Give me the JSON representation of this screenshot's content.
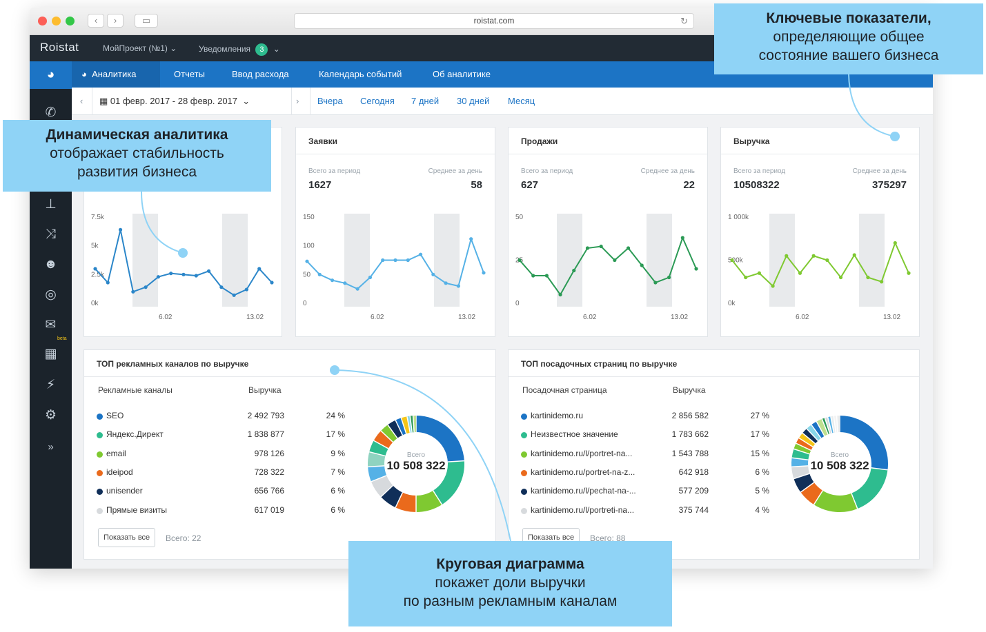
{
  "browser": {
    "url": "roistat.com"
  },
  "topbar": {
    "logo": "Roistat",
    "project": "МойПроект (№1) ⌄",
    "notifications": "Уведомления",
    "notif_count": "3",
    "notif_chevron": "⌄"
  },
  "tabs": [
    {
      "label": "Аналитика"
    },
    {
      "label": "Отчеты"
    },
    {
      "label": "Ввод расхода"
    },
    {
      "label": "Календарь событий"
    },
    {
      "label": "Об аналитике"
    }
  ],
  "filter": {
    "daterange": "01 февр. 2017 - 28 февр. 2017",
    "quick": [
      "Вчера",
      "Сегодня",
      "7 дней",
      "30 дней",
      "Месяц"
    ]
  },
  "metrics": [
    {
      "title": "",
      "total_label": "",
      "avg_label": "",
      "total": "",
      "avg": "",
      "color": "#2b86c9",
      "y_ticks": [
        "7.5k",
        "5k",
        "2.5k",
        "0k"
      ],
      "y_max": 7500,
      "x_ticks": [
        "6.02",
        "13.02"
      ],
      "values": [
        3000,
        1800,
        6400,
        1000,
        1400,
        2300,
        2600,
        2500,
        2400,
        2800,
        1400,
        700,
        1200,
        3000,
        1800
      ]
    },
    {
      "title": "Заявки",
      "total_label": "Всего за период",
      "avg_label": "Среднее за день",
      "total": "1627",
      "avg": "58",
      "color": "#55b1e6",
      "y_ticks": [
        "150",
        "100",
        "50",
        "0"
      ],
      "y_max": 150,
      "x_ticks": [
        "6.02",
        "13.02"
      ],
      "values": [
        73,
        50,
        40,
        35,
        25,
        45,
        75,
        75,
        75,
        85,
        50,
        35,
        30,
        112,
        53
      ]
    },
    {
      "title": "Продажи",
      "total_label": "Всего за период",
      "avg_label": "Среднее за день",
      "total": "627",
      "avg": "22",
      "color": "#2b9a55",
      "y_ticks": [
        "50",
        "25",
        "0"
      ],
      "y_max": 50,
      "x_ticks": [
        "6.02",
        "13.02"
      ],
      "values": [
        25,
        16,
        16,
        5,
        19,
        32,
        33,
        25,
        32,
        22,
        12,
        15,
        38,
        20
      ]
    },
    {
      "title": "Выручка",
      "total_label": "Всего за период",
      "avg_label": "Среднее за день",
      "total": "10508322",
      "avg": "375297",
      "color": "#7fc931",
      "y_ticks": [
        "1 000k",
        "500k",
        "0k"
      ],
      "y_max": 1000000,
      "x_ticks": [
        "6.02",
        "13.02"
      ],
      "values": [
        500000,
        300000,
        350000,
        200000,
        550000,
        350000,
        550000,
        500000,
        300000,
        560000,
        300000,
        250000,
        700000,
        350000
      ]
    }
  ],
  "channels": {
    "title": "ТОП рекламных каналов по выручке",
    "col_name": "Рекламные каналы",
    "col_value": "Выручка",
    "rows": [
      {
        "name": "SEO",
        "value": "2 492 793",
        "pct": "24 %",
        "color": "#1c74c5"
      },
      {
        "name": "Яндекс.Директ",
        "value": "1 838 877",
        "pct": "17 %",
        "color": "#2ebc8f"
      },
      {
        "name": "email",
        "value": "978 126",
        "pct": "9 %",
        "color": "#7fc931"
      },
      {
        "name": "ideipod",
        "value": "728 322",
        "pct": "7 %",
        "color": "#ea6a1c"
      },
      {
        "name": "unisender",
        "value": "656 766",
        "pct": "6 %",
        "color": "#102f59"
      },
      {
        "name": "Прямые визиты",
        "value": "617 019",
        "pct": "6 %",
        "color": "#d7dadd"
      }
    ],
    "show_all": "Показать все",
    "total_note": "Всего: 22",
    "donut_label": "Всего",
    "donut_total": "10 508 322",
    "slices": [
      {
        "share": 24,
        "color": "#1c74c5"
      },
      {
        "share": 17,
        "color": "#2ebc8f"
      },
      {
        "share": 9,
        "color": "#7fc931"
      },
      {
        "share": 7,
        "color": "#ea6a1c"
      },
      {
        "share": 6,
        "color": "#102f59"
      },
      {
        "share": 6,
        "color": "#d7dadd"
      },
      {
        "share": 5,
        "color": "#55b1e6"
      },
      {
        "share": 5,
        "color": "#8fd3c0"
      },
      {
        "share": 4,
        "color": "#2ebc8f"
      },
      {
        "share": 4,
        "color": "#ea6a1c"
      },
      {
        "share": 3,
        "color": "#7fc931"
      },
      {
        "share": 3,
        "color": "#102f59"
      },
      {
        "share": 2,
        "color": "#1c74c5"
      },
      {
        "share": 2,
        "color": "#f5c518"
      },
      {
        "share": 1,
        "color": "#88d6e8"
      },
      {
        "share": 1,
        "color": "#2b9a55"
      },
      {
        "share": 1,
        "color": "#bfe08f"
      }
    ]
  },
  "pages": {
    "title": "ТОП посадочных страниц по выручке",
    "col_name": "Посадочная страница",
    "col_value": "Выручка",
    "rows": [
      {
        "name": "kartinidemo.ru",
        "value": "2 856 582",
        "pct": "27 %",
        "color": "#1c74c5"
      },
      {
        "name": "Неизвестное значение",
        "value": "1 783 662",
        "pct": "17 %",
        "color": "#2ebc8f"
      },
      {
        "name": "kartinidemo.ru/l/portret-na...",
        "value": "1 543 788",
        "pct": "15 %",
        "color": "#7fc931"
      },
      {
        "name": "kartinidemo.ru/portret-na-z...",
        "value": "642 918",
        "pct": "6 %",
        "color": "#ea6a1c"
      },
      {
        "name": "kartinidemo.ru/l/pechat-na-...",
        "value": "577 209",
        "pct": "5 %",
        "color": "#102f59"
      },
      {
        "name": "kartinidemo.ru/l/portreti-na...",
        "value": "375 744",
        "pct": "4 %",
        "color": "#d7dadd"
      }
    ],
    "show_all": "Показать все",
    "total_note": "Всего: 88",
    "donut_label": "Всего",
    "donut_total": "10 508 322",
    "slices": [
      {
        "share": 27,
        "color": "#1c74c5"
      },
      {
        "share": 17,
        "color": "#2ebc8f"
      },
      {
        "share": 15,
        "color": "#7fc931"
      },
      {
        "share": 6,
        "color": "#ea6a1c"
      },
      {
        "share": 5,
        "color": "#102f59"
      },
      {
        "share": 4,
        "color": "#d7dadd"
      },
      {
        "share": 3,
        "color": "#55b1e6"
      },
      {
        "share": 3,
        "color": "#2ebc8f"
      },
      {
        "share": 2,
        "color": "#7fc931"
      },
      {
        "share": 2,
        "color": "#ea6a1c"
      },
      {
        "share": 2,
        "color": "#f5c518"
      },
      {
        "share": 2,
        "color": "#102f59"
      },
      {
        "share": 2,
        "color": "#88d6e8"
      },
      {
        "share": 2,
        "color": "#1c74c5"
      },
      {
        "share": 2,
        "color": "#bfe08f"
      },
      {
        "share": 1,
        "color": "#2b9a55"
      },
      {
        "share": 1,
        "color": "#d7dadd"
      },
      {
        "share": 1,
        "color": "#55b1e6"
      },
      {
        "share": 1,
        "color": "#e9eced"
      },
      {
        "share": 1,
        "color": "#f3f4f5"
      },
      {
        "share": 1,
        "color": "#e9eced"
      }
    ]
  },
  "callouts": {
    "top_right": [
      "Ключевые показатели,",
      "определяющие общее",
      "состояние вашего бизнеса"
    ],
    "left": [
      "Динамическая аналитика",
      "отображает стабильность",
      "развития бизнеса"
    ],
    "bottom": [
      "Круговая диаграмма",
      "покажет доли выручки",
      "по разным рекламным каналам"
    ]
  },
  "sidebar_icons": [
    "pie-chart-icon",
    "phone-icon",
    "org-tree-icon",
    "shuffle-icon",
    "users-icon",
    "target-icon",
    "mail-icon",
    "beta-calendar-icon",
    "plug-icon",
    "gear-icon",
    "expand-icon"
  ],
  "sidebar_beta": "beta"
}
